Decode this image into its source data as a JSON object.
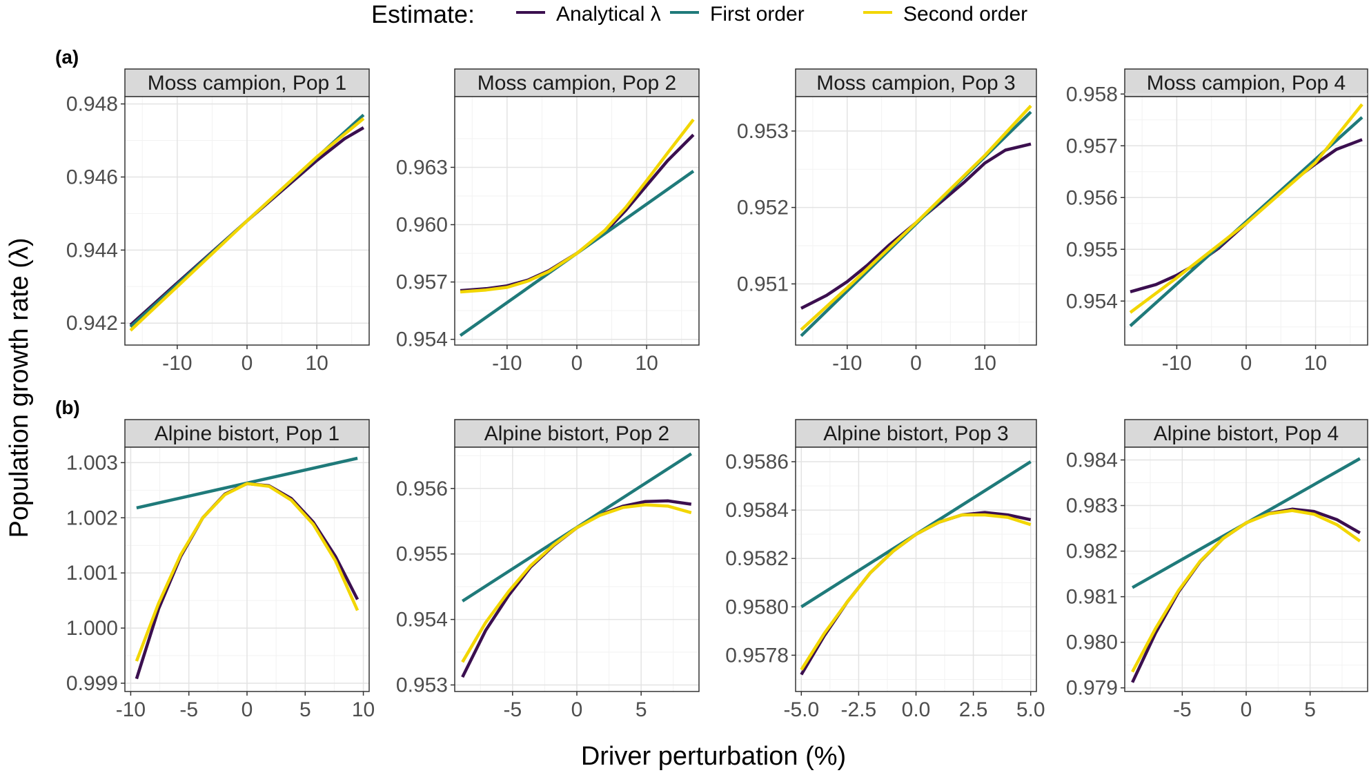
{
  "legend": {
    "title": "Estimate:",
    "items": [
      {
        "label": "Analytical λ",
        "color": "#3b0f4f"
      },
      {
        "label": "First order",
        "color": "#1f7a7a"
      },
      {
        "label": "Second order",
        "color": "#f2d600"
      }
    ]
  },
  "axes": {
    "ylabel": "Population growth rate (λ)",
    "xlabel": "Driver perturbation (%)"
  },
  "row_tags": [
    "(a)",
    "(b)"
  ],
  "chart_data": [
    {
      "type": "line",
      "title": "Moss campion, Pop 1",
      "row": 0,
      "col": 0,
      "xlim": [
        -17.5,
        17.5
      ],
      "ylim": [
        0.9414,
        0.9482
      ],
      "xticks": [
        {
          "v": -10,
          "t": "-10"
        },
        {
          "v": 0,
          "t": "0"
        },
        {
          "v": 10,
          "t": "10"
        }
      ],
      "yticks": [
        {
          "v": 0.942,
          "t": "0.942"
        },
        {
          "v": 0.944,
          "t": "0.944"
        },
        {
          "v": 0.946,
          "t": "0.946"
        },
        {
          "v": 0.948,
          "t": "0.948"
        }
      ],
      "series": [
        {
          "name": "Analytical λ",
          "x": [
            -16.7,
            -10,
            0,
            10,
            14,
            16.7
          ],
          "y": [
            0.94195,
            0.9431,
            0.9448,
            0.94645,
            0.94705,
            0.94735
          ]
        },
        {
          "name": "First order",
          "x": [
            -16.7,
            16.7
          ],
          "y": [
            0.9419,
            0.9477
          ]
        },
        {
          "name": "Second order",
          "x": [
            -16.7,
            -10,
            0,
            10,
            16.7
          ],
          "y": [
            0.9418,
            0.943,
            0.9448,
            0.94655,
            0.9476
          ]
        }
      ]
    },
    {
      "type": "line",
      "title": "Moss campion, Pop 2",
      "row": 0,
      "col": 1,
      "xlim": [
        -17.5,
        17.5
      ],
      "ylim": [
        0.9537,
        0.9667
      ],
      "xticks": [
        {
          "v": -10,
          "t": "-10"
        },
        {
          "v": 0,
          "t": "0"
        },
        {
          "v": 10,
          "t": "10"
        }
      ],
      "yticks": [
        {
          "v": 0.954,
          "t": "0.954"
        },
        {
          "v": 0.957,
          "t": "0.957"
        },
        {
          "v": 0.96,
          "t": "0.960"
        },
        {
          "v": 0.963,
          "t": "0.963"
        }
      ],
      "series": [
        {
          "name": "Analytical λ",
          "x": [
            -16.7,
            -13,
            -10,
            -7,
            -4,
            0,
            4,
            7,
            10,
            13,
            16.7
          ],
          "y": [
            0.95655,
            0.95665,
            0.9568,
            0.9571,
            0.9576,
            0.9585,
            0.9596,
            0.96075,
            0.96205,
            0.96335,
            0.9647
          ]
        },
        {
          "name": "First order",
          "x": [
            -16.7,
            16.7
          ],
          "y": [
            0.9542,
            0.9628
          ]
        },
        {
          "name": "Second order",
          "x": [
            -16.7,
            -13,
            -10,
            -7,
            -4,
            0,
            4,
            7,
            10,
            13,
            16.7
          ],
          "y": [
            0.95648,
            0.95658,
            0.95672,
            0.95705,
            0.95755,
            0.9585,
            0.9597,
            0.9609,
            0.9623,
            0.96375,
            0.9655
          ]
        }
      ]
    },
    {
      "type": "line",
      "title": "Moss campion, Pop 3",
      "row": 0,
      "col": 2,
      "xlim": [
        -17.5,
        17.5
      ],
      "ylim": [
        0.9502,
        0.95345
      ],
      "xticks": [
        {
          "v": -10,
          "t": "-10"
        },
        {
          "v": 0,
          "t": "0"
        },
        {
          "v": 10,
          "t": "10"
        }
      ],
      "yticks": [
        {
          "v": 0.951,
          "t": "0.951"
        },
        {
          "v": 0.952,
          "t": "0.952"
        },
        {
          "v": 0.953,
          "t": "0.953"
        }
      ],
      "series": [
        {
          "name": "Analytical λ",
          "x": [
            -16.7,
            -13,
            -10,
            -7,
            -4,
            0,
            4,
            7,
            10,
            13,
            16.7
          ],
          "y": [
            0.95068,
            0.95085,
            0.95103,
            0.95125,
            0.9515,
            0.9518,
            0.9521,
            0.95233,
            0.95258,
            0.95275,
            0.95283
          ]
        },
        {
          "name": "First order",
          "x": [
            -16.7,
            16.7
          ],
          "y": [
            0.95032,
            0.95325
          ]
        },
        {
          "name": "Second order",
          "x": [
            -16.7,
            -10,
            0,
            10,
            16.7
          ],
          "y": [
            0.9504,
            0.95095,
            0.9518,
            0.95268,
            0.95333
          ]
        }
      ]
    },
    {
      "type": "line",
      "title": "Moss campion, Pop 4",
      "row": 0,
      "col": 3,
      "xlim": [
        -17.5,
        17.5
      ],
      "ylim": [
        0.95315,
        0.95795
      ],
      "xticks": [
        {
          "v": -10,
          "t": "-10"
        },
        {
          "v": 0,
          "t": "0"
        },
        {
          "v": 10,
          "t": "10"
        }
      ],
      "yticks": [
        {
          "v": 0.954,
          "t": "0.954"
        },
        {
          "v": 0.955,
          "t": "0.955"
        },
        {
          "v": 0.956,
          "t": "0.956"
        },
        {
          "v": 0.957,
          "t": "0.957"
        },
        {
          "v": 0.958,
          "t": "0.958"
        }
      ],
      "series": [
        {
          "name": "Analytical λ",
          "x": [
            -16.7,
            -13,
            -10,
            -7,
            -4,
            0,
            4,
            7,
            10,
            13,
            16.7
          ],
          "y": [
            0.95418,
            0.95432,
            0.9545,
            0.95473,
            0.95502,
            0.9555,
            0.956,
            0.95635,
            0.95665,
            0.95693,
            0.95712
          ]
        },
        {
          "name": "First order",
          "x": [
            -16.7,
            16.7
          ],
          "y": [
            0.95352,
            0.95755
          ]
        },
        {
          "name": "Second order",
          "x": [
            -16.7,
            -10,
            0,
            10,
            16.7
          ],
          "y": [
            0.95378,
            0.95445,
            0.9555,
            0.95668,
            0.9578
          ]
        }
      ]
    },
    {
      "type": "line",
      "title": "Alpine bistort, Pop 1",
      "row": 1,
      "col": 0,
      "xlim": [
        -10.5,
        10.5
      ],
      "ylim": [
        0.99885,
        1.00328
      ],
      "xticks": [
        {
          "v": -10,
          "t": "-10"
        },
        {
          "v": -5,
          "t": "-5"
        },
        {
          "v": 0,
          "t": "0"
        },
        {
          "v": 5,
          "t": "5"
        },
        {
          "v": 10,
          "t": "10"
        }
      ],
      "yticks": [
        {
          "v": 0.999,
          "t": "0.999"
        },
        {
          "v": 1.0,
          "t": "1.000"
        },
        {
          "v": 1.001,
          "t": "1.001"
        },
        {
          "v": 1.002,
          "t": "1.002"
        },
        {
          "v": 1.003,
          "t": "1.003"
        }
      ],
      "series": [
        {
          "name": "Analytical λ",
          "x": [
            -9.5,
            -7.6,
            -5.7,
            -3.8,
            -1.9,
            0,
            1.9,
            3.8,
            5.7,
            7.6,
            9.5
          ],
          "y": [
            0.99908,
            1.00035,
            1.0013,
            1.002,
            1.00243,
            1.00262,
            1.00258,
            1.00235,
            1.00192,
            1.0013,
            1.00052
          ]
        },
        {
          "name": "First order",
          "x": [
            -9.5,
            9.5
          ],
          "y": [
            1.00218,
            1.00308
          ]
        },
        {
          "name": "Second order",
          "x": [
            -9.5,
            -7.6,
            -5.7,
            -3.8,
            -1.9,
            0,
            1.9,
            3.8,
            5.7,
            7.6,
            9.5
          ],
          "y": [
            0.9994,
            1.00045,
            1.00133,
            1.002,
            1.00242,
            1.00262,
            1.00257,
            1.00232,
            1.00188,
            1.00122,
            1.00032
          ]
        }
      ]
    },
    {
      "type": "line",
      "title": "Alpine bistort, Pop 2",
      "row": 1,
      "col": 1,
      "xlim": [
        -9.5,
        9.5
      ],
      "ylim": [
        0.9529,
        0.95663
      ],
      "xticks": [
        {
          "v": -5,
          "t": "-5"
        },
        {
          "v": 0,
          "t": "0"
        },
        {
          "v": 5,
          "t": "5"
        }
      ],
      "yticks": [
        {
          "v": 0.953,
          "t": "0.953"
        },
        {
          "v": 0.954,
          "t": "0.954"
        },
        {
          "v": 0.955,
          "t": "0.955"
        },
        {
          "v": 0.956,
          "t": "0.956"
        }
      ],
      "series": [
        {
          "name": "Analytical λ",
          "x": [
            -8.9,
            -7.1,
            -5.3,
            -3.6,
            -1.8,
            0,
            1.8,
            3.6,
            5.3,
            7.1,
            8.9
          ],
          "y": [
            0.95312,
            0.95383,
            0.95437,
            0.9548,
            0.95513,
            0.9554,
            0.9556,
            0.95573,
            0.9558,
            0.95581,
            0.95576
          ]
        },
        {
          "name": "First order",
          "x": [
            -8.9,
            8.9
          ],
          "y": [
            0.95428,
            0.95653
          ]
        },
        {
          "name": "Second order",
          "x": [
            -8.9,
            -7.1,
            -5.3,
            -3.6,
            -1.8,
            0,
            1.8,
            3.6,
            5.3,
            7.1,
            8.9
          ],
          "y": [
            0.95335,
            0.95395,
            0.95443,
            0.95482,
            0.95514,
            0.9554,
            0.95559,
            0.95571,
            0.95575,
            0.95573,
            0.95563
          ]
        }
      ]
    },
    {
      "type": "line",
      "title": "Alpine bistort, Pop 3",
      "row": 1,
      "col": 2,
      "xlim": [
        -5.25,
        5.25
      ],
      "ylim": [
        0.95765,
        0.95866
      ],
      "xticks": [
        {
          "v": -5,
          "t": "-5.0"
        },
        {
          "v": -2.5,
          "t": "-2.5"
        },
        {
          "v": 0,
          "t": "0.0"
        },
        {
          "v": 2.5,
          "t": "2.5"
        },
        {
          "v": 5,
          "t": "5.0"
        }
      ],
      "yticks": [
        {
          "v": 0.9578,
          "t": "0.9578"
        },
        {
          "v": 0.958,
          "t": "0.9580"
        },
        {
          "v": 0.9582,
          "t": "0.9582"
        },
        {
          "v": 0.9584,
          "t": "0.9584"
        },
        {
          "v": 0.9586,
          "t": "0.9586"
        }
      ],
      "series": [
        {
          "name": "Analytical λ",
          "x": [
            -5,
            -4,
            -3,
            -2,
            -1,
            0,
            1,
            2,
            3,
            4,
            5
          ],
          "y": [
            0.95772,
            0.95788,
            0.95802,
            0.95814,
            0.95823,
            0.9583,
            0.95835,
            0.95838,
            0.95839,
            0.95838,
            0.95836
          ]
        },
        {
          "name": "First order",
          "x": [
            -5,
            5
          ],
          "y": [
            0.958,
            0.9586
          ]
        },
        {
          "name": "Second order",
          "x": [
            -5,
            -4,
            -3,
            -2,
            -1,
            0,
            1,
            2,
            3,
            4,
            5
          ],
          "y": [
            0.95774,
            0.95789,
            0.95802,
            0.95814,
            0.95823,
            0.9583,
            0.95835,
            0.95838,
            0.95838,
            0.95837,
            0.95834
          ]
        }
      ]
    },
    {
      "type": "line",
      "title": "Alpine bistort, Pop 4",
      "row": 1,
      "col": 3,
      "xlim": [
        -9.5,
        9.5
      ],
      "ylim": [
        0.97892,
        0.98428
      ],
      "xticks": [
        {
          "v": -5,
          "t": "-5"
        },
        {
          "v": 0,
          "t": "0"
        },
        {
          "v": 5,
          "t": "5"
        }
      ],
      "yticks": [
        {
          "v": 0.979,
          "t": "0.979"
        },
        {
          "v": 0.98,
          "t": "0.980"
        },
        {
          "v": 0.981,
          "t": "0.981"
        },
        {
          "v": 0.982,
          "t": "0.982"
        },
        {
          "v": 0.983,
          "t": "0.983"
        },
        {
          "v": 0.984,
          "t": "0.984"
        }
      ],
      "series": [
        {
          "name": "Analytical λ",
          "x": [
            -8.9,
            -7.1,
            -5.3,
            -3.6,
            -1.8,
            0,
            1.8,
            3.6,
            5.3,
            7.1,
            8.9
          ],
          "y": [
            0.97912,
            0.9802,
            0.9811,
            0.98177,
            0.98228,
            0.98262,
            0.98283,
            0.98292,
            0.98287,
            0.98269,
            0.9824
          ]
        },
        {
          "name": "First order",
          "x": [
            -8.9,
            8.9
          ],
          "y": [
            0.9812,
            0.98403
          ]
        },
        {
          "name": "Second order",
          "x": [
            -8.9,
            -7.1,
            -5.3,
            -3.6,
            -1.8,
            0,
            1.8,
            3.6,
            5.3,
            7.1,
            8.9
          ],
          "y": [
            0.97935,
            0.9803,
            0.98113,
            0.98178,
            0.98228,
            0.98262,
            0.98282,
            0.98289,
            0.98281,
            0.98258,
            0.98222
          ]
        }
      ]
    }
  ]
}
